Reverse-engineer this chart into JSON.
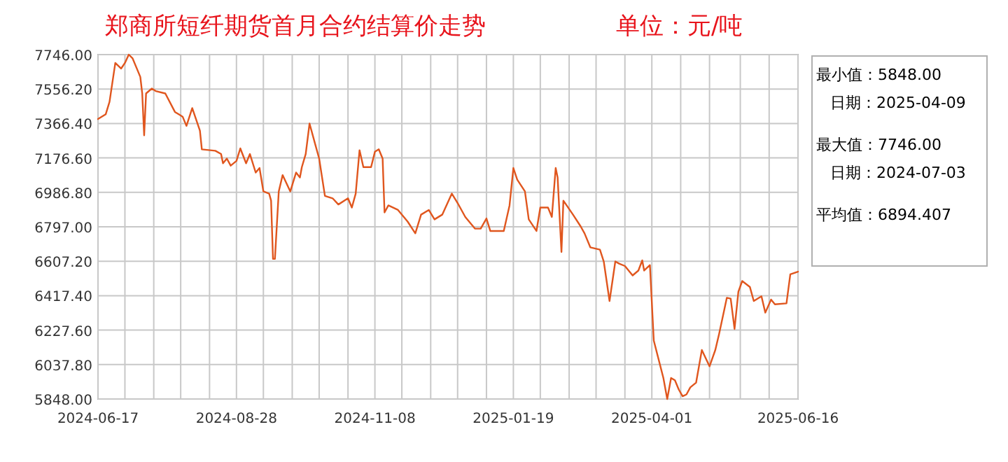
{
  "chart_data": {
    "type": "line",
    "title": "郑商所短纤期货首月合约结算价走势",
    "subtitle": "单位：元/吨",
    "annotations": [
      "最小值：5848.00",
      "日期：2025-04-09",
      "最大值：7746.00",
      "日期：2024-07-03",
      "平均值：6894.407"
    ],
    "grid": true,
    "marker": "none",
    "line_style": "solid",
    "xlim": [
      "2024-06-17",
      "2025-06-16"
    ],
    "xticks": [
      {
        "value": "2024-06-17",
        "label": "2024-06-17"
      },
      {
        "value": "2024-07-01",
        "label": null
      },
      {
        "value": "2024-07-16",
        "label": null
      },
      {
        "value": "2024-07-30",
        "label": null
      },
      {
        "value": "2024-08-14",
        "label": null
      },
      {
        "value": "2024-08-28",
        "label": "2024-08-28"
      },
      {
        "value": "2024-09-11",
        "label": null
      },
      {
        "value": "2024-09-26",
        "label": null
      },
      {
        "value": "2024-10-10",
        "label": null
      },
      {
        "value": "2024-10-25",
        "label": null
      },
      {
        "value": "2024-11-08",
        "label": "2024-11-08"
      },
      {
        "value": "2024-11-22",
        "label": null
      },
      {
        "value": "2024-12-07",
        "label": null
      },
      {
        "value": "2024-12-21",
        "label": null
      },
      {
        "value": "2025-01-05",
        "label": null
      },
      {
        "value": "2025-01-19",
        "label": "2025-01-19"
      },
      {
        "value": "2025-02-02",
        "label": null
      },
      {
        "value": "2025-02-17",
        "label": null
      },
      {
        "value": "2025-03-03",
        "label": null
      },
      {
        "value": "2025-03-18",
        "label": null
      },
      {
        "value": "2025-04-01",
        "label": "2025-04-01"
      },
      {
        "value": "2025-04-16",
        "label": null
      },
      {
        "value": "2025-05-01",
        "label": null
      },
      {
        "value": "2025-05-17",
        "label": null
      },
      {
        "value": "2025-06-01",
        "label": null
      },
      {
        "value": "2025-06-16",
        "label": "2025-06-16"
      }
    ],
    "ylim": [
      5848,
      7746
    ],
    "yticks": [
      {
        "value": 5848,
        "label": "5848.00"
      },
      {
        "value": 6037.8,
        "label": "6037.80"
      },
      {
        "value": 6227.6,
        "label": "6227.60"
      },
      {
        "value": 6417.4,
        "label": "6417.40"
      },
      {
        "value": 6607.2,
        "label": "6607.20"
      },
      {
        "value": 6797,
        "label": "6797.00"
      },
      {
        "value": 6986.8,
        "label": "6986.80"
      },
      {
        "value": 7176.6,
        "label": "7176.60"
      },
      {
        "value": 7366.4,
        "label": "7366.40"
      },
      {
        "value": 7556.2,
        "label": "7556.20"
      },
      {
        "value": 7746,
        "label": "7746.00"
      }
    ],
    "series": [
      {
        "color": "#e0561e",
        "x": [
          "2024-06-17",
          "2024-06-21",
          "2024-06-23",
          "2024-06-26",
          "2024-06-29",
          "2024-07-01",
          "2024-07-03",
          "2024-07-05",
          "2024-07-07",
          "2024-07-09",
          "2024-07-10",
          "2024-07-11",
          "2024-07-12",
          "2024-07-15",
          "2024-07-17",
          "2024-07-22",
          "2024-07-27",
          "2024-07-31",
          "2024-08-02",
          "2024-08-05",
          "2024-08-09",
          "2024-08-10",
          "2024-08-17",
          "2024-08-20",
          "2024-08-21",
          "2024-08-23",
          "2024-08-25",
          "2024-08-28",
          "2024-08-30",
          "2024-09-02",
          "2024-09-04",
          "2024-09-07",
          "2024-09-09",
          "2024-09-11",
          "2024-09-14",
          "2024-09-15",
          "2024-09-16",
          "2024-09-17",
          "2024-09-19",
          "2024-09-21",
          "2024-09-25",
          "2024-09-28",
          "2024-09-30",
          "2024-10-01",
          "2024-10-03",
          "2024-10-05",
          "2024-10-08",
          "2024-10-10",
          "2024-10-13",
          "2024-10-17",
          "2024-10-20",
          "2024-10-25",
          "2024-10-27",
          "2024-10-29",
          "2024-10-31",
          "2024-11-02",
          "2024-11-06",
          "2024-11-08",
          "2024-11-10",
          "2024-11-12",
          "2024-11-13",
          "2024-11-15",
          "2024-11-20",
          "2024-11-25",
          "2024-11-29",
          "2024-12-02",
          "2024-12-06",
          "2024-12-09",
          "2024-12-13",
          "2024-12-18",
          "2024-12-21",
          "2024-12-25",
          "2024-12-30",
          "2025-01-02",
          "2025-01-05",
          "2025-01-07",
          "2025-01-14",
          "2025-01-17",
          "2025-01-19",
          "2025-01-21",
          "2025-01-25",
          "2025-01-27",
          "2025-01-31",
          "2025-02-02",
          "2025-02-06",
          "2025-02-08",
          "2025-02-10",
          "2025-02-11",
          "2025-02-13",
          "2025-02-14",
          "2025-02-19",
          "2025-02-23",
          "2025-02-25",
          "2025-02-28",
          "2025-03-05",
          "2025-03-07",
          "2025-03-10",
          "2025-03-13",
          "2025-03-15",
          "2025-03-18",
          "2025-03-22",
          "2025-03-25",
          "2025-03-27",
          "2025-03-28",
          "2025-03-31",
          "2025-04-02",
          "2025-04-07",
          "2025-04-09",
          "2025-04-11",
          "2025-04-13",
          "2025-04-15",
          "2025-04-17",
          "2025-04-19",
          "2025-04-21",
          "2025-04-24",
          "2025-04-27",
          "2025-05-01",
          "2025-05-04",
          "2025-05-06",
          "2025-05-10",
          "2025-05-12",
          "2025-05-14",
          "2025-05-16",
          "2025-05-18",
          "2025-05-22",
          "2025-05-24",
          "2025-05-28",
          "2025-05-30",
          "2025-06-02",
          "2025-06-04",
          "2025-06-10",
          "2025-06-12",
          "2025-06-16"
        ],
        "values": [
          7391,
          7417,
          7486,
          7700,
          7669,
          7700,
          7746,
          7725,
          7674,
          7623,
          7532,
          7301,
          7532,
          7559,
          7545,
          7532,
          7430,
          7404,
          7353,
          7451,
          7327,
          7224,
          7216,
          7198,
          7147,
          7173,
          7134,
          7160,
          7229,
          7147,
          7198,
          7096,
          7121,
          6992,
          6980,
          6941,
          6620,
          6620,
          6992,
          7082,
          6992,
          7096,
          7069,
          7126,
          7198,
          7366,
          7250,
          7173,
          6967,
          6954,
          6920,
          6954,
          6903,
          6980,
          7219,
          7126,
          7126,
          7211,
          7224,
          7173,
          6876,
          6915,
          6890,
          6826,
          6761,
          6864,
          6890,
          6838,
          6864,
          6980,
          6928,
          6851,
          6787,
          6787,
          6843,
          6774,
          6774,
          6915,
          7121,
          7057,
          6992,
          6838,
          6774,
          6903,
          6903,
          6851,
          7121,
          7069,
          6658,
          6941,
          6864,
          6799,
          6761,
          6684,
          6671,
          6606,
          6388,
          6606,
          6594,
          6581,
          6529,
          6556,
          6612,
          6556,
          6586,
          6170,
          5964,
          5848,
          5964,
          5951,
          5900,
          5863,
          5873,
          5912,
          5938,
          6118,
          6028,
          6118,
          6208,
          6406,
          6401,
          6234,
          6440,
          6498,
          6465,
          6388,
          6414,
          6324,
          6396,
          6370,
          6375,
          6535,
          6550
        ]
      }
    ]
  }
}
